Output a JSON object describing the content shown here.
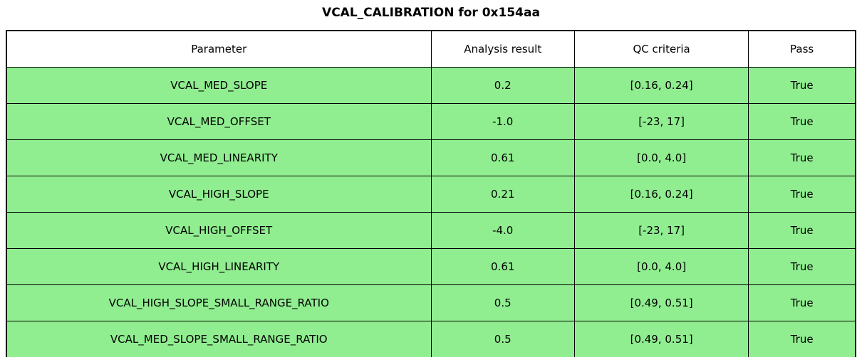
{
  "title": "VCAL_CALIBRATION for 0x154aa",
  "colors": {
    "row_background": "#90EE90",
    "header_background": "#FFFFFF",
    "border": "#000000",
    "text": "#000000",
    "page_background": "#FFFFFF"
  },
  "table": {
    "columns": [
      "Parameter",
      "Analysis result",
      "QC criteria",
      "Pass"
    ],
    "rows": [
      {
        "parameter": "VCAL_MED_SLOPE",
        "result": "0.2",
        "criteria": "[0.16, 0.24]",
        "pass": "True"
      },
      {
        "parameter": "VCAL_MED_OFFSET",
        "result": "-1.0",
        "criteria": "[-23, 17]",
        "pass": "True"
      },
      {
        "parameter": "VCAL_MED_LINEARITY",
        "result": "0.61",
        "criteria": "[0.0, 4.0]",
        "pass": "True"
      },
      {
        "parameter": "VCAL_HIGH_SLOPE",
        "result": "0.21",
        "criteria": "[0.16, 0.24]",
        "pass": "True"
      },
      {
        "parameter": "VCAL_HIGH_OFFSET",
        "result": "-4.0",
        "criteria": "[-23, 17]",
        "pass": "True"
      },
      {
        "parameter": "VCAL_HIGH_LINEARITY",
        "result": "0.61",
        "criteria": "[0.0, 4.0]",
        "pass": "True"
      },
      {
        "parameter": "VCAL_HIGH_SLOPE_SMALL_RANGE_RATIO",
        "result": "0.5",
        "criteria": "[0.49, 0.51]",
        "pass": "True"
      },
      {
        "parameter": "VCAL_MED_SLOPE_SMALL_RANGE_RATIO",
        "result": "0.5",
        "criteria": "[0.49, 0.51]",
        "pass": "True"
      }
    ]
  },
  "chart_data": {
    "type": "table",
    "title": "VCAL_CALIBRATION for 0x154aa",
    "columns": [
      "Parameter",
      "Analysis result",
      "QC criteria",
      "Pass"
    ],
    "rows": [
      [
        "VCAL_MED_SLOPE",
        "0.2",
        "[0.16, 0.24]",
        "True"
      ],
      [
        "VCAL_MED_OFFSET",
        "-1.0",
        "[-23, 17]",
        "True"
      ],
      [
        "VCAL_MED_LINEARITY",
        "0.61",
        "[0.0, 4.0]",
        "True"
      ],
      [
        "VCAL_HIGH_SLOPE",
        "0.21",
        "[0.16, 0.24]",
        "True"
      ],
      [
        "VCAL_HIGH_OFFSET",
        "-4.0",
        "[-23, 17]",
        "True"
      ],
      [
        "VCAL_HIGH_LINEARITY",
        "0.61",
        "[0.0, 4.0]",
        "True"
      ],
      [
        "VCAL_HIGH_SLOPE_SMALL_RANGE_RATIO",
        "0.5",
        "[0.49, 0.51]",
        "True"
      ],
      [
        "VCAL_MED_SLOPE_SMALL_RANGE_RATIO",
        "0.5",
        "[0.49, 0.51]",
        "True"
      ]
    ],
    "layout": {
      "header_row": true,
      "row_fill_color": "#90EE90",
      "header_fill_color": "#FFFFFF",
      "all_pass": true
    }
  }
}
